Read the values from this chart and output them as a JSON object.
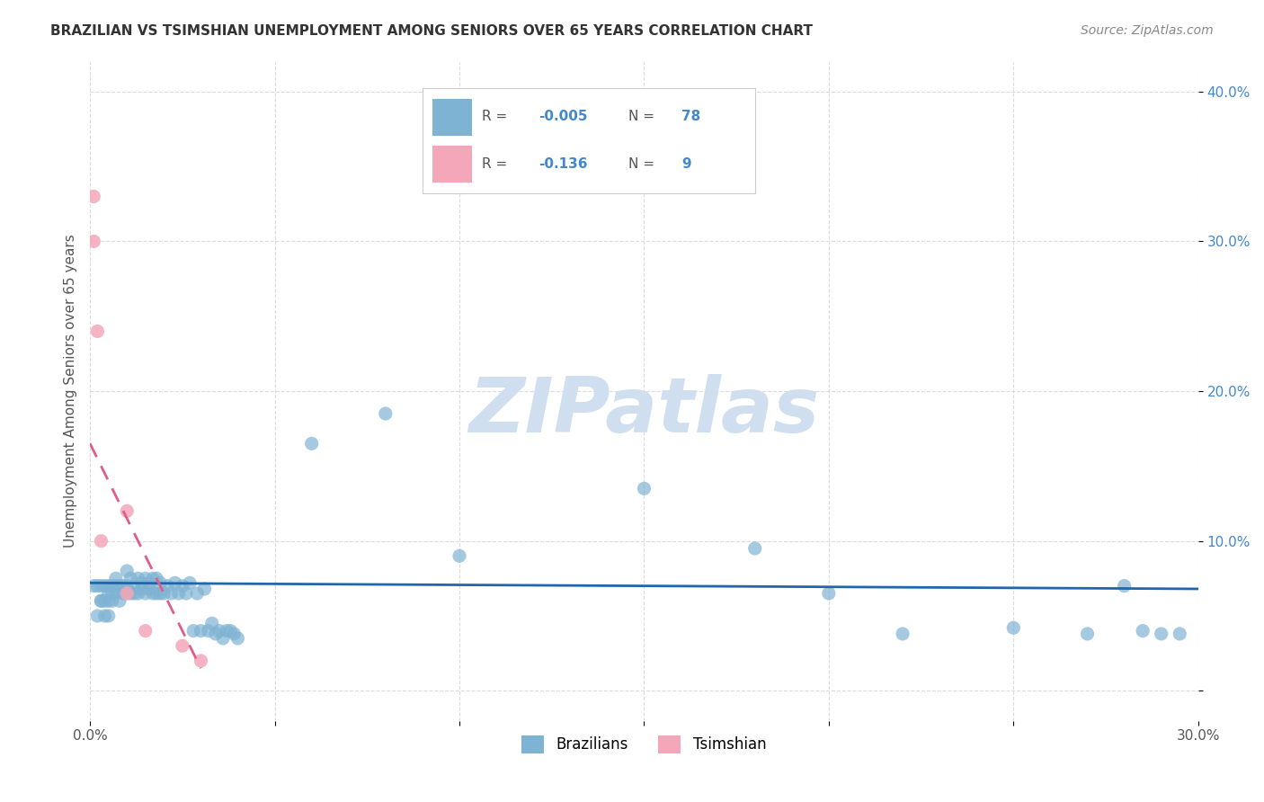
{
  "title": "BRAZILIAN VS TSIMSHIAN UNEMPLOYMENT AMONG SENIORS OVER 65 YEARS CORRELATION CHART",
  "source": "Source: ZipAtlas.com",
  "xlabel": "",
  "ylabel": "Unemployment Among Seniors over 65 years",
  "xlim": [
    0.0,
    0.3
  ],
  "ylim": [
    -0.02,
    0.42
  ],
  "xticks": [
    0.0,
    0.05,
    0.1,
    0.15,
    0.2,
    0.25,
    0.3
  ],
  "yticks": [
    0.0,
    0.1,
    0.2,
    0.3,
    0.4
  ],
  "xtick_labels": [
    "0.0%",
    "",
    "",
    "",
    "",
    "",
    "30.0%"
  ],
  "ytick_labels": [
    "",
    "10.0%",
    "20.0%",
    "30.0%",
    "40.0%"
  ],
  "blue_color": "#7fb3d3",
  "pink_color": "#f4a7b9",
  "blue_line_color": "#2166ac",
  "pink_line_color": "#e05c8a",
  "legend_R_blue": "R = -0.005",
  "legend_N_blue": "N = 78",
  "legend_R_pink": "R =  -0.136",
  "legend_N_pink": "N =  9",
  "watermark": "ZIPatlas",
  "watermark_color": "#d0dff0",
  "background_color": "#ffffff",
  "grid_color": "#cccccc",
  "blue_x": [
    0.001,
    0.002,
    0.002,
    0.003,
    0.003,
    0.003,
    0.004,
    0.004,
    0.004,
    0.005,
    0.005,
    0.005,
    0.005,
    0.006,
    0.006,
    0.006,
    0.007,
    0.007,
    0.007,
    0.008,
    0.008,
    0.009,
    0.009,
    0.01,
    0.01,
    0.01,
    0.011,
    0.011,
    0.012,
    0.012,
    0.013,
    0.013,
    0.014,
    0.014,
    0.015,
    0.015,
    0.016,
    0.016,
    0.017,
    0.017,
    0.018,
    0.018,
    0.019,
    0.019,
    0.02,
    0.021,
    0.022,
    0.023,
    0.024,
    0.025,
    0.026,
    0.027,
    0.028,
    0.029,
    0.03,
    0.031,
    0.032,
    0.033,
    0.034,
    0.035,
    0.036,
    0.037,
    0.038,
    0.039,
    0.04,
    0.06,
    0.08,
    0.1,
    0.15,
    0.18,
    0.2,
    0.22,
    0.25,
    0.27,
    0.28,
    0.285,
    0.29,
    0.295
  ],
  "blue_y": [
    0.07,
    0.05,
    0.07,
    0.06,
    0.07,
    0.06,
    0.05,
    0.06,
    0.07,
    0.05,
    0.06,
    0.065,
    0.07,
    0.06,
    0.065,
    0.07,
    0.065,
    0.07,
    0.075,
    0.06,
    0.07,
    0.065,
    0.07,
    0.065,
    0.07,
    0.08,
    0.065,
    0.075,
    0.065,
    0.07,
    0.065,
    0.075,
    0.068,
    0.072,
    0.065,
    0.075,
    0.068,
    0.072,
    0.065,
    0.075,
    0.065,
    0.075,
    0.065,
    0.072,
    0.065,
    0.07,
    0.065,
    0.072,
    0.065,
    0.07,
    0.065,
    0.072,
    0.04,
    0.065,
    0.04,
    0.068,
    0.04,
    0.045,
    0.038,
    0.04,
    0.035,
    0.04,
    0.04,
    0.038,
    0.035,
    0.165,
    0.185,
    0.09,
    0.135,
    0.095,
    0.065,
    0.038,
    0.042,
    0.038,
    0.07,
    0.04,
    0.038,
    0.038
  ],
  "pink_x": [
    0.001,
    0.001,
    0.002,
    0.003,
    0.01,
    0.01,
    0.015,
    0.025,
    0.03
  ],
  "pink_y": [
    0.3,
    0.33,
    0.24,
    0.1,
    0.12,
    0.065,
    0.04,
    0.03,
    0.02
  ],
  "blue_trend_x": [
    0.0,
    0.3
  ],
  "blue_trend_y": [
    0.072,
    0.068
  ],
  "pink_trend_x": [
    0.0,
    0.03
  ],
  "pink_trend_y": [
    0.165,
    0.015
  ]
}
